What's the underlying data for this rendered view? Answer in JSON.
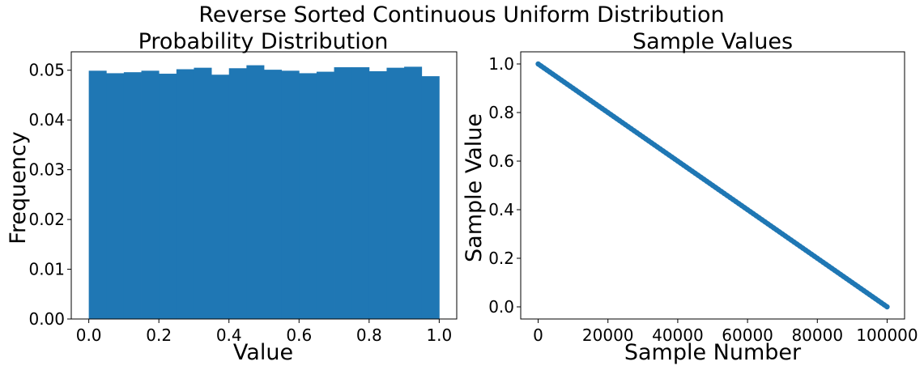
{
  "figure": {
    "suptitle": "Reverse Sorted Continuous Uniform Distribution"
  },
  "chart_data": [
    {
      "type": "bar",
      "title": "Probability Distribution",
      "xlabel": "Value",
      "ylabel": "Frequency",
      "color": "#1f77b4",
      "bin_edges": [
        0.0,
        0.05,
        0.1,
        0.15,
        0.2,
        0.25,
        0.3,
        0.35,
        0.4,
        0.45,
        0.5,
        0.55,
        0.6,
        0.65,
        0.7,
        0.75,
        0.8,
        0.85,
        0.9,
        0.95,
        1.0
      ],
      "values": [
        0.0499,
        0.0494,
        0.0496,
        0.0499,
        0.0493,
        0.0502,
        0.0505,
        0.0491,
        0.0504,
        0.051,
        0.0501,
        0.0499,
        0.0494,
        0.0497,
        0.0506,
        0.0506,
        0.0498,
        0.0505,
        0.0507,
        0.0488
      ],
      "xlim": [
        -0.05,
        1.05
      ],
      "ylim": [
        0,
        0.0537
      ],
      "xticks": [
        0.0,
        0.2,
        0.4,
        0.6,
        0.8,
        1.0
      ],
      "xtick_labels": [
        "0.0",
        "0.2",
        "0.4",
        "0.6",
        "0.8",
        "1.0"
      ],
      "yticks": [
        0.0,
        0.01,
        0.02,
        0.03,
        0.04,
        0.05
      ],
      "ytick_labels": [
        "0.00",
        "0.01",
        "0.02",
        "0.03",
        "0.04",
        "0.05"
      ],
      "grid": false
    },
    {
      "type": "scatter",
      "title": "Sample Values",
      "xlabel": "Sample Number",
      "ylabel": "Sample Value",
      "color": "#1f77b4",
      "x": [
        0,
        100000
      ],
      "y": [
        1.0,
        0.0
      ],
      "xlim": [
        -5000,
        105000
      ],
      "ylim": [
        -0.05,
        1.05
      ],
      "xticks": [
        0,
        20000,
        40000,
        60000,
        80000,
        100000
      ],
      "xtick_labels": [
        "0",
        "20000",
        "40000",
        "60000",
        "80000",
        "100000"
      ],
      "yticks": [
        0.0,
        0.2,
        0.4,
        0.6,
        0.8,
        1.0
      ],
      "ytick_labels": [
        "0.0",
        "0.2",
        "0.4",
        "0.6",
        "0.8",
        "1.0"
      ],
      "grid": false
    }
  ]
}
